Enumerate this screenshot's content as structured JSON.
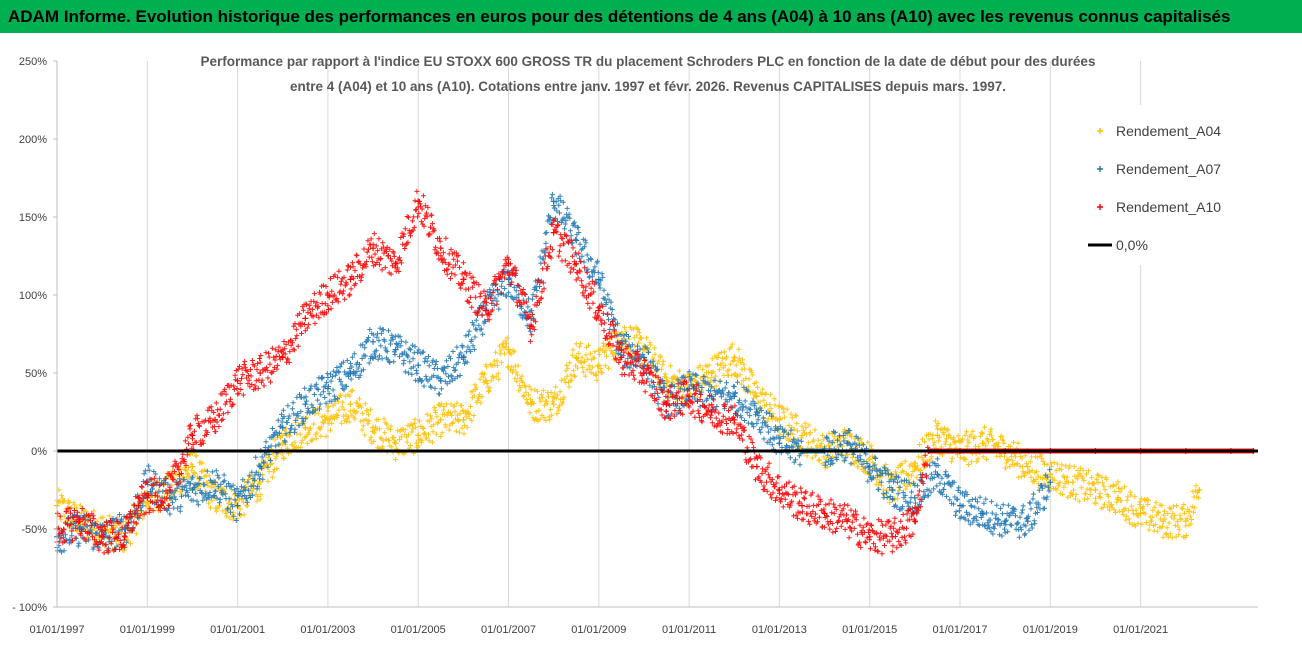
{
  "header": {
    "banner_text": "ADAM Informe. Evolution historique des performances en euros pour des détentions de 4 ans (A04) à 10 ans (A10) avec les revenus connus capitalisés"
  },
  "chart_data": {
    "type": "scatter",
    "title_line1": "Performance par rapport à l'indice EU STOXX 600 GROSS TR  du placement Schroders PLC en fonction de la date de début pour des durées",
    "title_line2": "entre 4 (A04) et 10 ans (A10). Cotations entre janv. 1997 et févr. 2026. Revenus CAPITALISES depuis mars. 1997.",
    "xlabel": "",
    "ylabel": "",
    "xlim": [
      1997.0,
      2023.6
    ],
    "ylim": [
      -100,
      250
    ],
    "y_ticks": [
      -100,
      -50,
      0,
      50,
      100,
      150,
      200,
      250
    ],
    "y_tick_labels": [
      "- 100%",
      "-50%",
      "0%",
      "50%",
      "100%",
      "150%",
      "200%",
      "250%"
    ],
    "x_ticks": [
      1997,
      1999,
      2001,
      2003,
      2005,
      2007,
      2009,
      2011,
      2013,
      2015,
      2017,
      2019,
      2021
    ],
    "x_tick_labels": [
      "01/01/1997",
      "01/01/1999",
      "01/01/2001",
      "01/01/2003",
      "01/01/2005",
      "01/01/2007",
      "01/01/2009",
      "01/01/2011",
      "01/01/2013",
      "01/01/2015",
      "01/01/2017",
      "01/01/2019",
      "01/01/2021"
    ],
    "grid": "vertical",
    "legend_position": "top-right",
    "legend": [
      {
        "label": "Rendement_A04",
        "color": "#ffc000",
        "marker": "+"
      },
      {
        "label": "Rendement_A07",
        "color": "#1f77b4",
        "marker": "+"
      },
      {
        "label": "Rendement_A10",
        "color": "#ff0000",
        "marker": "+"
      },
      {
        "label": "0,0%",
        "color": "#000000",
        "marker": "line"
      }
    ],
    "series": [
      {
        "name": "Rendement_A04",
        "color": "#ffc000",
        "x": [
          1997.0,
          1997.5,
          1998.0,
          1998.5,
          1998.8,
          1999.0,
          1999.5,
          2000.0,
          2000.5,
          2001.0,
          2001.5,
          2002.0,
          2002.5,
          2003.0,
          2003.5,
          2004.0,
          2004.5,
          2005.0,
          2005.5,
          2006.0,
          2006.5,
          2007.0,
          2007.5,
          2008.0,
          2008.5,
          2009.0,
          2009.5,
          2010.0,
          2010.5,
          2011.0,
          2011.5,
          2012.0,
          2012.5,
          2013.0,
          2013.5,
          2014.0,
          2014.5,
          2015.0,
          2015.5,
          2016.0,
          2016.5,
          2017.0,
          2017.5,
          2018.0,
          2018.5,
          2019.0,
          2019.5,
          2020.0,
          2020.5,
          2021.0,
          2021.5,
          2022.0,
          2022.3
        ],
        "y": [
          -35,
          -45,
          -50,
          -55,
          -40,
          -30,
          -25,
          -10,
          -30,
          -35,
          -20,
          5,
          15,
          20,
          30,
          15,
          5,
          10,
          20,
          20,
          45,
          65,
          30,
          30,
          60,
          55,
          75,
          65,
          45,
          40,
          50,
          60,
          35,
          20,
          10,
          0,
          5,
          -5,
          -25,
          -10,
          10,
          0,
          5,
          0,
          -10,
          -15,
          -20,
          -25,
          -30,
          -40,
          -45,
          -45,
          -25
        ]
      },
      {
        "name": "Rendement_A07",
        "color": "#1f77b4",
        "x": [
          1997.0,
          1997.5,
          1998.0,
          1998.5,
          1998.8,
          1999.0,
          1999.5,
          2000.0,
          2000.5,
          2001.0,
          2001.5,
          2002.0,
          2002.5,
          2003.0,
          2003.5,
          2004.0,
          2004.5,
          2005.0,
          2005.5,
          2006.0,
          2006.5,
          2007.0,
          2007.5,
          2008.0,
          2008.5,
          2009.0,
          2009.5,
          2010.0,
          2010.5,
          2011.0,
          2011.5,
          2012.0,
          2012.5,
          2013.0,
          2013.5,
          2014.0,
          2014.5,
          2015.0,
          2015.5,
          2016.0,
          2016.5,
          2017.0,
          2017.5,
          2018.0,
          2018.5,
          2019.0
        ],
        "y": [
          -55,
          -50,
          -55,
          -50,
          -35,
          -20,
          -30,
          -25,
          -20,
          -35,
          -10,
          15,
          30,
          40,
          50,
          70,
          65,
          55,
          45,
          60,
          90,
          110,
          85,
          160,
          135,
          110,
          65,
          60,
          30,
          40,
          35,
          35,
          25,
          5,
          0,
          0,
          5,
          -10,
          -25,
          -30,
          -15,
          -35,
          -40,
          -45,
          -45,
          -20
        ]
      },
      {
        "name": "Rendement_A10",
        "color": "#ff0000",
        "x": [
          1997.0,
          1997.5,
          1998.0,
          1998.5,
          1998.8,
          1999.0,
          1999.5,
          2000.0,
          2000.5,
          2001.0,
          2001.5,
          2002.0,
          2002.5,
          2003.0,
          2003.5,
          2004.0,
          2004.5,
          2005.0,
          2005.5,
          2006.0,
          2006.5,
          2007.0,
          2007.5,
          2008.0,
          2008.5,
          2009.0,
          2009.5,
          2010.0,
          2010.5,
          2011.0,
          2011.5,
          2012.0,
          2012.5,
          2013.0,
          2013.5,
          2014.0,
          2014.5,
          2015.0,
          2015.5,
          2016.0,
          2016.3,
          2017.0,
          2018.0,
          2019.0,
          2020.0,
          2021.0,
          2022.0,
          2023.0,
          2023.5
        ],
        "y": [
          -50,
          -45,
          -55,
          -55,
          -35,
          -30,
          -25,
          10,
          20,
          45,
          50,
          60,
          85,
          100,
          110,
          130,
          120,
          160,
          130,
          110,
          90,
          120,
          80,
          140,
          120,
          90,
          60,
          50,
          30,
          35,
          25,
          20,
          -10,
          -25,
          -35,
          -40,
          -45,
          -55,
          -55,
          -45,
          0,
          0,
          0,
          0,
          0,
          0,
          0,
          0,
          0
        ]
      },
      {
        "name": "0,0%",
        "color": "#000000",
        "x": [
          1997.0,
          2023.6
        ],
        "y": [
          0,
          0
        ]
      }
    ]
  }
}
